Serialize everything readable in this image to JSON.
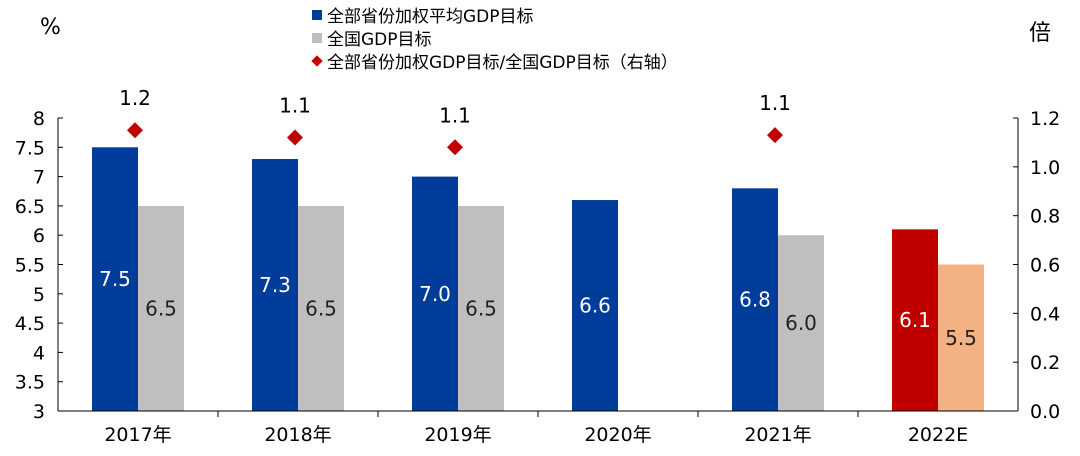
{
  "chart_data": {
    "type": "bar",
    "left_axis_unit": "%",
    "right_axis_unit": "倍",
    "categories": [
      "2017年",
      "2018年",
      "2019年",
      "2020年",
      "2021年",
      "2022E"
    ],
    "left_axis": {
      "min": 3,
      "max": 8,
      "ticks": [
        "3",
        "3.5",
        "4",
        "4.5",
        "5",
        "5.5",
        "6",
        "6.5",
        "7",
        "7.5",
        "8"
      ]
    },
    "right_axis": {
      "min": 0,
      "max": 1.2,
      "ticks": [
        "0.0",
        "0.2",
        "0.4",
        "0.6",
        "0.8",
        "1.0",
        "1.2"
      ]
    },
    "series": [
      {
        "name": "全部省份加权平均GDP目标",
        "axis": "left",
        "kind": "bar",
        "color": "#003C99",
        "values": [
          7.5,
          7.3,
          7.0,
          6.6,
          6.8,
          6.1
        ],
        "labels": [
          "7.5",
          "7.3",
          "7.0",
          "6.6",
          "6.8",
          "6.1"
        ],
        "point_colors": [
          "#003C99",
          "#003C99",
          "#003C99",
          "#003C99",
          "#003C99",
          "#C00000"
        ]
      },
      {
        "name": "全国GDP目标",
        "axis": "left",
        "kind": "bar",
        "color": "#BFBFBF",
        "values": [
          6.5,
          6.5,
          6.5,
          null,
          6.0,
          5.5
        ],
        "labels": [
          "6.5",
          "6.5",
          "6.5",
          "",
          "6.0",
          "5.5"
        ],
        "point_colors": [
          "#BFBFBF",
          "#BFBFBF",
          "#BFBFBF",
          "#BFBFBF",
          "#BFBFBF",
          "#F4B183"
        ]
      },
      {
        "name": "全部省份加权GDP目标/全国GDP目标（右轴）",
        "axis": "right",
        "kind": "marker",
        "marker": "diamond",
        "color": "#C00000",
        "values": [
          1.15,
          1.12,
          1.08,
          null,
          1.13,
          null
        ],
        "labels": [
          "1.2",
          "1.1",
          "1.1",
          "",
          "1.1",
          ""
        ]
      }
    ]
  }
}
